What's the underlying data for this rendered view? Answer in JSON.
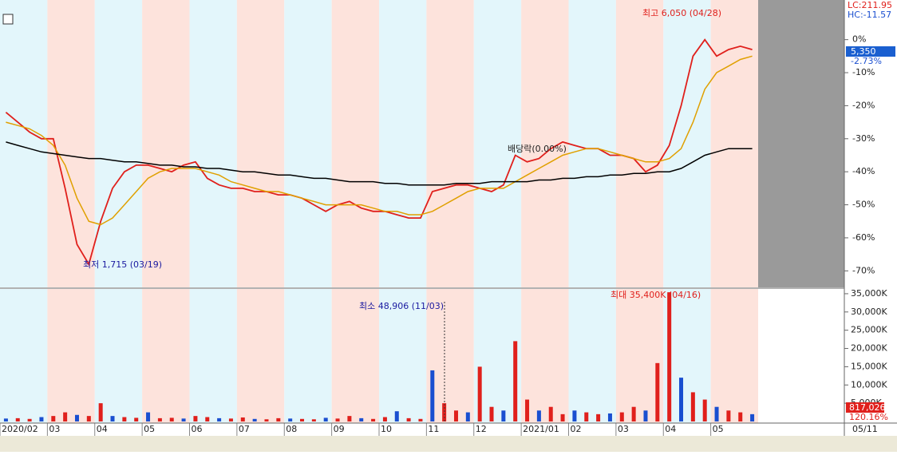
{
  "chart_data": [
    {
      "type": "line",
      "categories": [
        "2020/02",
        "03",
        "04",
        "05",
        "06",
        "07",
        "08",
        "09",
        "10",
        "11",
        "12",
        "2021/01",
        "02",
        "03",
        "04",
        "05"
      ],
      "ylim": [
        -75,
        12
      ],
      "yticks": [
        {
          "value": 0,
          "label": "0%"
        },
        {
          "value": -10,
          "label": "-10%"
        },
        {
          "value": -20,
          "label": "-20%"
        },
        {
          "value": -30,
          "label": "-30%"
        },
        {
          "value": -40,
          "label": "-40%"
        },
        {
          "value": -50,
          "label": "-50%"
        },
        {
          "value": -60,
          "label": "-60%"
        },
        {
          "value": -70,
          "label": "-70%"
        }
      ],
      "series": [
        {
          "name": "price",
          "color": "#e0201c",
          "values": [
            [
              -22,
              -25,
              -28,
              -30
            ],
            [
              -30,
              -45,
              -62,
              -68
            ],
            [
              -55,
              -45,
              -40,
              -38
            ],
            [
              -38,
              -39,
              -40,
              -38
            ],
            [
              -37,
              -42,
              -44,
              -45
            ],
            [
              -45,
              -46,
              -46,
              -47
            ],
            [
              -47,
              -48,
              -50,
              -52
            ],
            [
              -50,
              -49,
              -51,
              -52
            ],
            [
              -52,
              -53,
              -54,
              -54
            ],
            [
              -46,
              -45,
              -44,
              -44
            ],
            [
              -45,
              -46,
              -44,
              -35
            ],
            [
              -37,
              -36,
              -33,
              -31
            ],
            [
              -32,
              -33,
              -33,
              -35
            ],
            [
              -35,
              -36,
              -40,
              -38
            ],
            [
              -32,
              -20,
              -5,
              0
            ],
            [
              -5,
              -3,
              -2,
              -3
            ]
          ]
        },
        {
          "name": "ma-short",
          "color": "#e0a000",
          "values": [
            [
              -25,
              -26,
              -27,
              -29
            ],
            [
              -32,
              -38,
              -48,
              -55
            ],
            [
              -56,
              -54,
              -50,
              -46
            ],
            [
              -42,
              -40,
              -39,
              -39
            ],
            [
              -39,
              -40,
              -41,
              -43
            ],
            [
              -44,
              -45,
              -46,
              -46
            ],
            [
              -47,
              -48,
              -49,
              -50
            ],
            [
              -50,
              -50,
              -50,
              -51
            ],
            [
              -52,
              -52,
              -53,
              -53
            ],
            [
              -52,
              -50,
              -48,
              -46
            ],
            [
              -45,
              -45,
              -45,
              -43
            ],
            [
              -41,
              -39,
              -37,
              -35
            ],
            [
              -34,
              -33,
              -33,
              -34
            ],
            [
              -35,
              -36,
              -37,
              -37
            ],
            [
              -36,
              -33,
              -25,
              -15
            ],
            [
              -10,
              -8,
              -6,
              -5
            ]
          ]
        },
        {
          "name": "ma-long",
          "color": "#000000",
          "values": [
            [
              -31,
              -32,
              -33,
              -34
            ],
            [
              -34.5,
              -35,
              -35.5,
              -36
            ],
            [
              -36,
              -36.5,
              -37,
              -37
            ],
            [
              -37.5,
              -38,
              -38,
              -38.5
            ],
            [
              -38.5,
              -39,
              -39,
              -39.5
            ],
            [
              -40,
              -40,
              -40.5,
              -41
            ],
            [
              -41,
              -41.5,
              -42,
              -42
            ],
            [
              -42.5,
              -43,
              -43,
              -43
            ],
            [
              -43.5,
              -43.5,
              -44,
              -44
            ],
            [
              -44,
              -44,
              -43.5,
              -43.5
            ],
            [
              -43.5,
              -43,
              -43,
              -43
            ],
            [
              -43,
              -42.5,
              -42.5,
              -42
            ],
            [
              -42,
              -41.5,
              -41.5,
              -41
            ],
            [
              -41,
              -40.5,
              -40.5,
              -40
            ],
            [
              -40,
              -39,
              -37,
              -35
            ],
            [
              -34,
              -33,
              -33,
              -33
            ]
          ]
        }
      ],
      "annotations": {
        "high": "최고 6,050 (04/28)",
        "low": "최저 1,715 (03/19)",
        "ex_div": "배당락(0.00%)"
      },
      "last_price_label": "5,350",
      "last_change_label": "-2.73%",
      "lc": "LC:211.95",
      "hc": "HC:-11.57"
    },
    {
      "type": "bar",
      "ylim": [
        0,
        36300
      ],
      "yticks": [
        {
          "value": 5000,
          "label": "5,000K"
        },
        {
          "value": 10000,
          "label": "10,000K"
        },
        {
          "value": 15000,
          "label": "15,000K"
        },
        {
          "value": 20000,
          "label": "20,000K"
        },
        {
          "value": 25000,
          "label": "25,000K"
        },
        {
          "value": 30000,
          "label": "30,000K"
        },
        {
          "value": 35000,
          "label": "35,000K"
        }
      ],
      "series": [
        {
          "name": "volume",
          "color": "#e0201c",
          "values": [
            [
              800,
              900,
              700,
              1200
            ],
            [
              1500,
              2500,
              1800,
              1500
            ],
            [
              5000,
              1500,
              1200,
              1000
            ],
            [
              2500,
              900,
              1000,
              800
            ],
            [
              1500,
              1200,
              900,
              800
            ],
            [
              1100,
              700,
              600,
              900
            ],
            [
              800,
              700,
              600,
              1000
            ],
            [
              800,
              1500,
              900,
              700
            ],
            [
              1200,
              2800,
              900,
              700
            ],
            [
              14000,
              5000,
              3000,
              2500
            ],
            [
              15000,
              4000,
              3000,
              22000
            ],
            [
              6000,
              3000,
              4000,
              2000
            ],
            [
              3000,
              2500,
              2000,
              2200
            ],
            [
              2500,
              4000,
              3000,
              16000
            ],
            [
              35400,
              12000,
              8000,
              6000
            ],
            [
              4000,
              3000,
              2500,
              2000
            ]
          ]
        }
      ],
      "annotations": {
        "max": "최대 35,400K (04/16)",
        "min": "최소 48,906 (11/03)"
      },
      "last_volume_label": "817,026",
      "last_ratio_label": "120.16%",
      "date_label": "05/11"
    }
  ]
}
